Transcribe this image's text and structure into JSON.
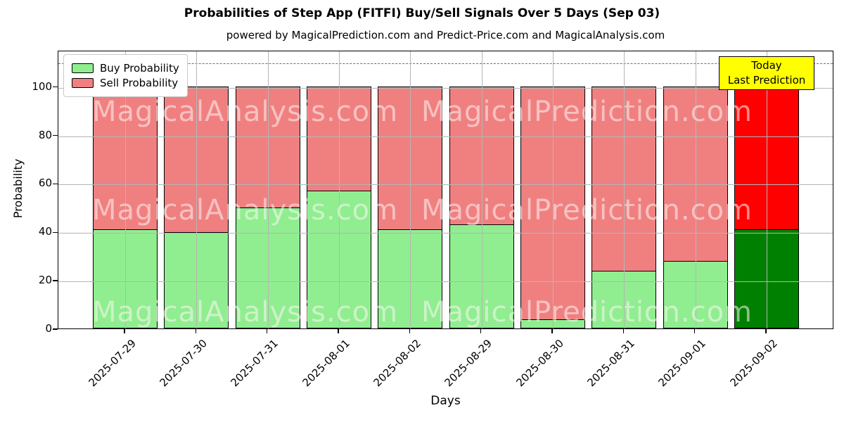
{
  "header": {
    "title": "Probabilities of Step App (FITFI) Buy/Sell Signals Over 5 Days (Sep 03)",
    "subtitle": "powered by MagicalPrediction.com and Predict-Price.com and MagicalAnalysis.com"
  },
  "axes": {
    "ylabel": "Probability",
    "xlabel": "Days"
  },
  "legend": {
    "items": [
      {
        "label": "Buy Probability",
        "color": "#90EE90"
      },
      {
        "label": "Sell Probability",
        "color": "#F08080"
      }
    ]
  },
  "annotation": {
    "line1": "Today",
    "line2": "Last Prediction",
    "bg_color": "#FFFF00"
  },
  "watermarks": {
    "left_text": "MagicalAnalysis.com",
    "right_text": "MagicalPrediction.com"
  },
  "chart_data": {
    "type": "bar",
    "stacked": true,
    "title": "Probabilities of Step App (FITFI) Buy/Sell Signals Over 5 Days (Sep 03)",
    "xlabel": "Days",
    "ylabel": "Probability",
    "categories": [
      "2025-07-29",
      "2025-07-30",
      "2025-07-31",
      "2025-08-01",
      "2025-08-02",
      "2025-08-29",
      "2025-08-30",
      "2025-08-31",
      "2025-09-01",
      "2025-09-02"
    ],
    "series": [
      {
        "name": "Buy Probability",
        "color": "#90EE90",
        "values": [
          41,
          40,
          50,
          57,
          41,
          43,
          4,
          24,
          28,
          41
        ]
      },
      {
        "name": "Sell Probability",
        "color": "#F08080",
        "values": [
          59,
          60,
          50,
          43,
          59,
          57,
          96,
          76,
          72,
          59
        ]
      }
    ],
    "last_bar_colors": {
      "buy": "#008000",
      "sell": "#FF0000"
    },
    "ylim": [
      0,
      115
    ],
    "yticks": [
      0,
      20,
      40,
      60,
      80,
      100
    ],
    "dashed_line_y": 110,
    "grid": true,
    "grid_color": "#b5b5b5",
    "legend_position": "upper left"
  }
}
